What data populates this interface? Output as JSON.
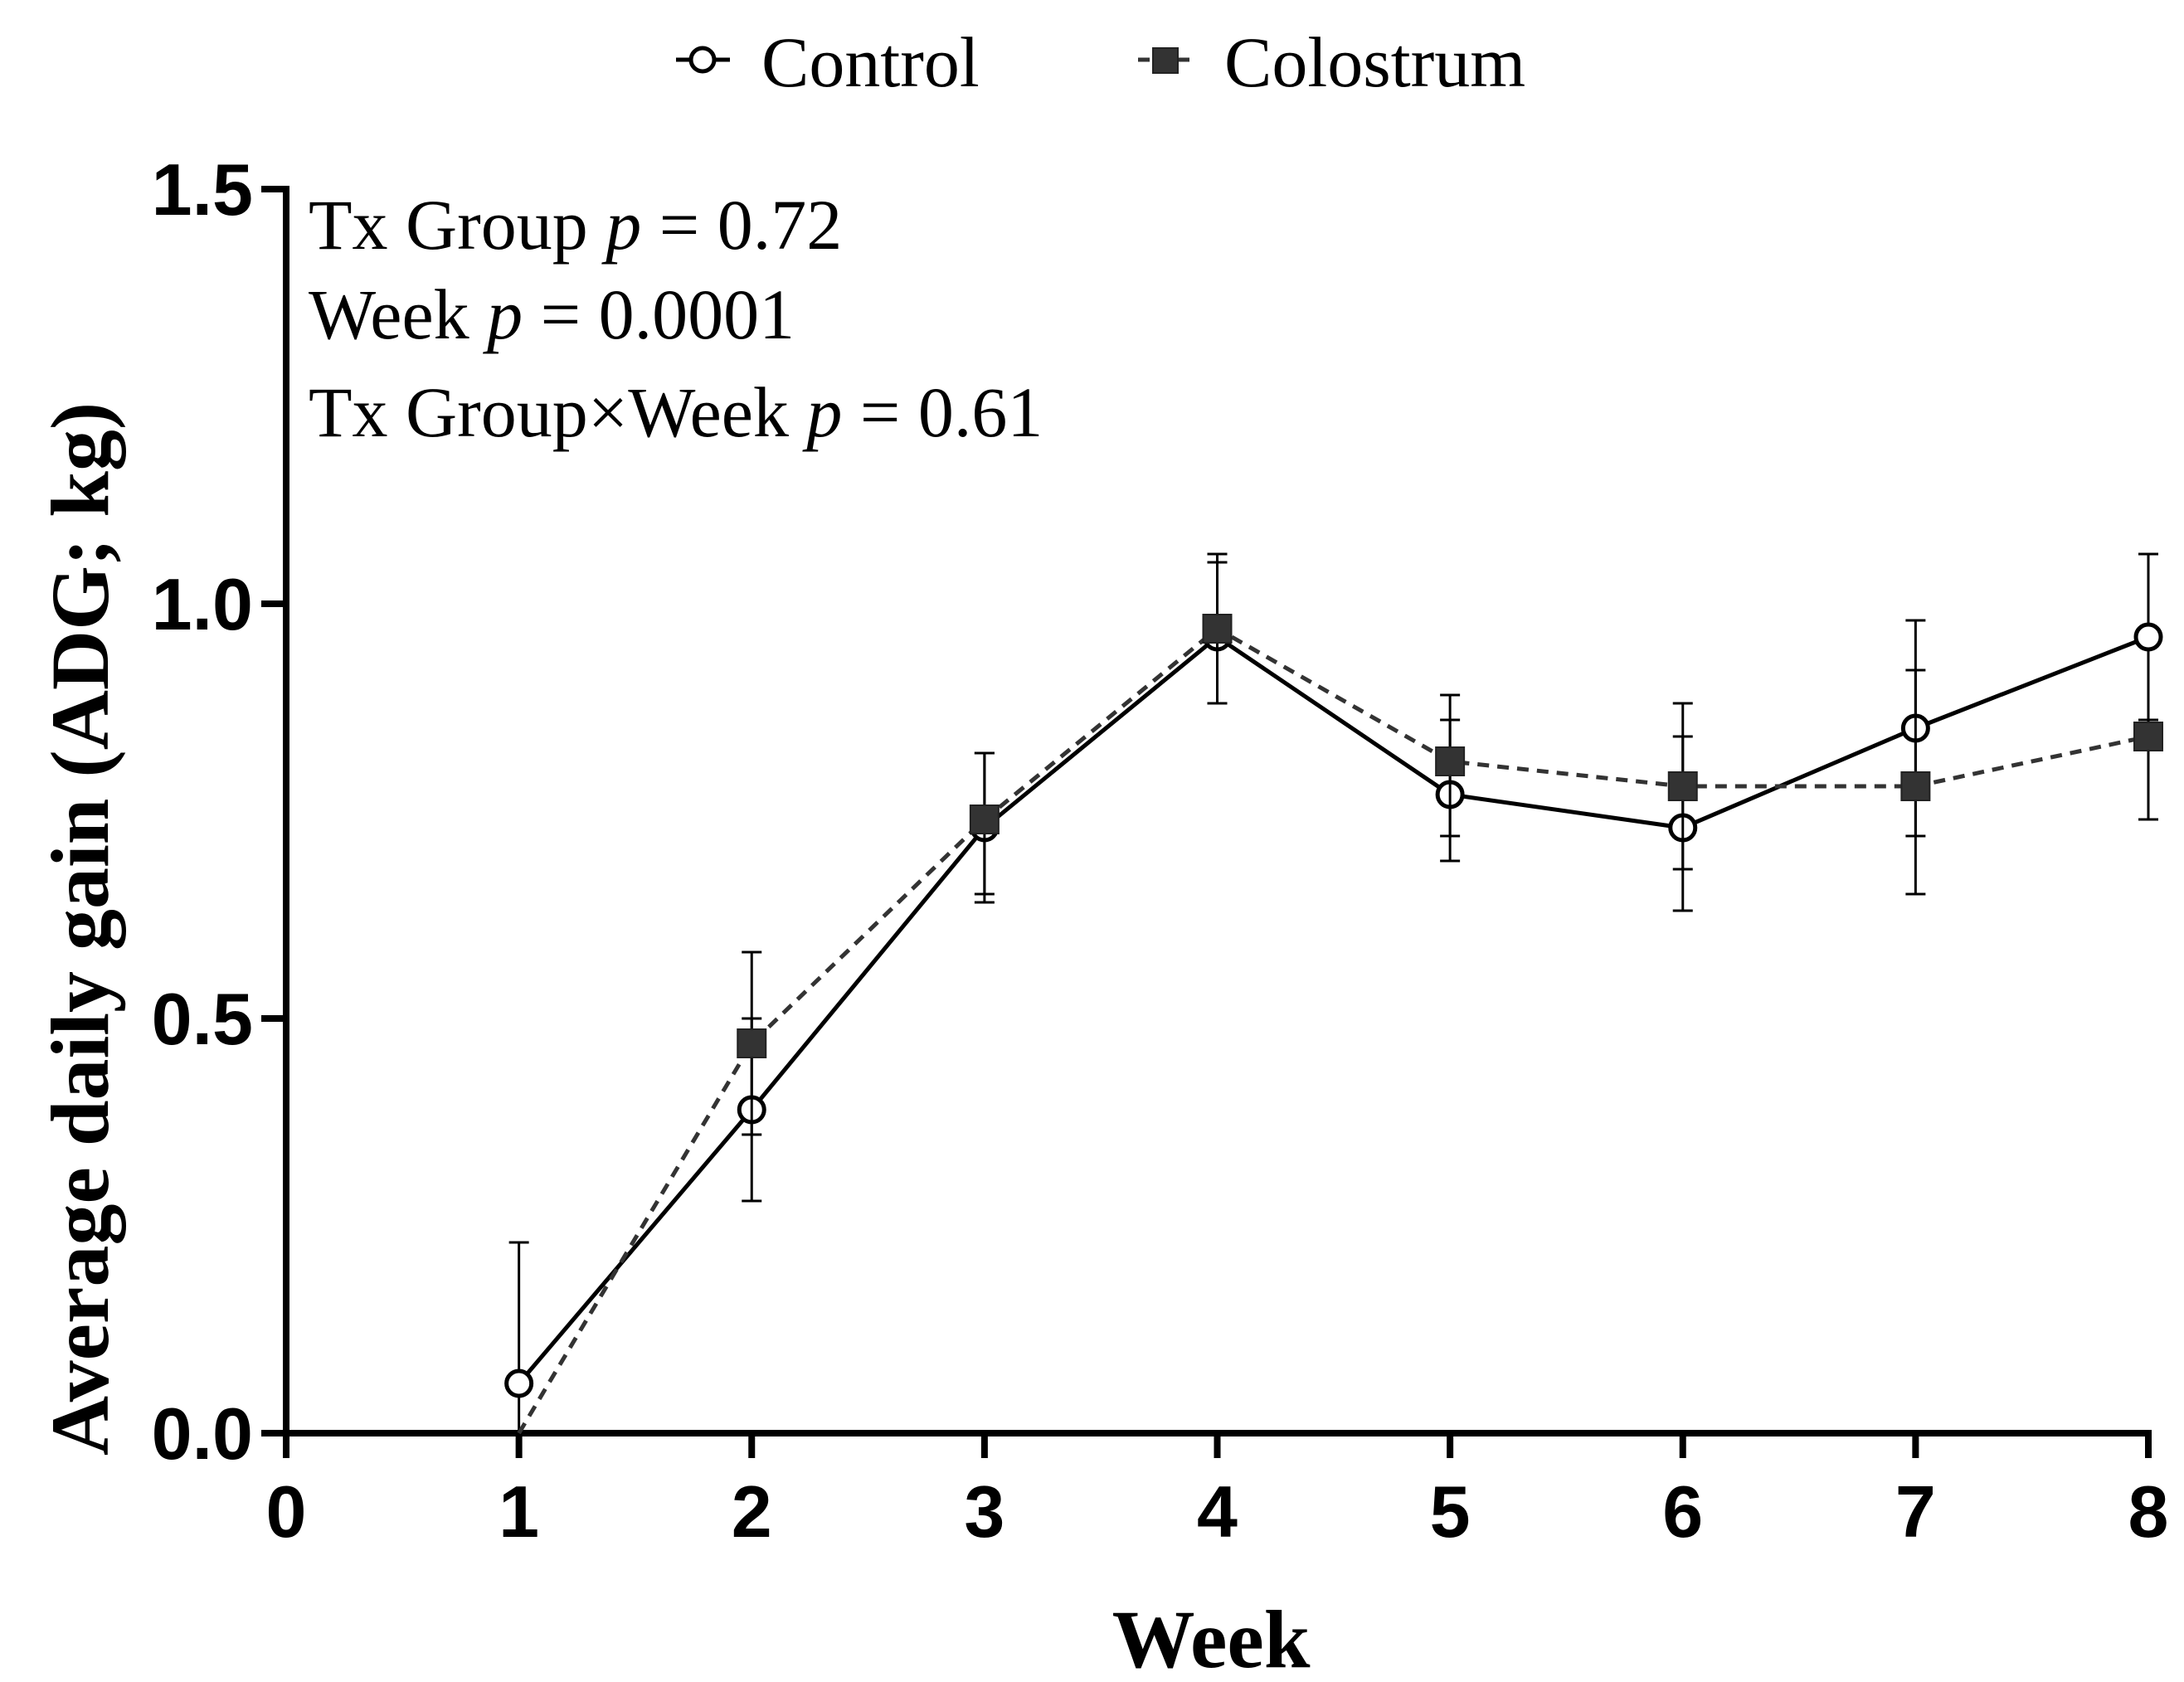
{
  "chart_data": {
    "type": "line",
    "title": "",
    "xlabel": "Week",
    "ylabel": "Average daily gain (ADG; kg)",
    "xlim": [
      0,
      8
    ],
    "ylim": [
      0,
      1.5
    ],
    "x_ticks": [
      "0",
      "1",
      "2",
      "3",
      "4",
      "5",
      "6",
      "7",
      "8"
    ],
    "y_ticks": [
      "0.0",
      "0.5",
      "1.0",
      "1.5"
    ],
    "x": [
      1,
      2,
      3,
      4,
      5,
      6,
      7,
      8
    ],
    "series": [
      {
        "name": "Control",
        "marker": "open-circle",
        "line": "solid",
        "values": [
          0.06,
          0.39,
          0.73,
          0.96,
          0.77,
          0.73,
          0.85,
          0.96
        ],
        "err_low": [
          0.0,
          0.28,
          0.65,
          0.88,
          0.69,
          0.63,
          0.72,
          0.86
        ],
        "err_high": [
          0.23,
          0.5,
          0.82,
          1.05,
          0.86,
          0.84,
          0.98,
          1.06
        ]
      },
      {
        "name": "Colostrum",
        "marker": "filled-square",
        "line": "dashed",
        "values": [
          0.0,
          0.47,
          0.74,
          0.97,
          0.81,
          0.78,
          0.78,
          0.84
        ],
        "err_low": [
          0.0,
          0.36,
          0.64,
          0.88,
          0.72,
          0.68,
          0.65,
          0.74
        ],
        "err_high": [
          0.0,
          0.58,
          0.82,
          1.06,
          0.89,
          0.88,
          0.92,
          0.86
        ]
      }
    ],
    "annotations": [
      {
        "pre": "Tx Group ",
        "p": "p",
        "post": " = 0.72"
      },
      {
        "pre": "Week ",
        "p": "p",
        "post": " = 0.0001"
      },
      {
        "pre": "Tx Group×Week ",
        "p": "p",
        "post": " = 0.61"
      }
    ],
    "legend_position": "top-center",
    "grid": false,
    "colors": {
      "control": "#000000",
      "colostrum": "#333333"
    }
  }
}
